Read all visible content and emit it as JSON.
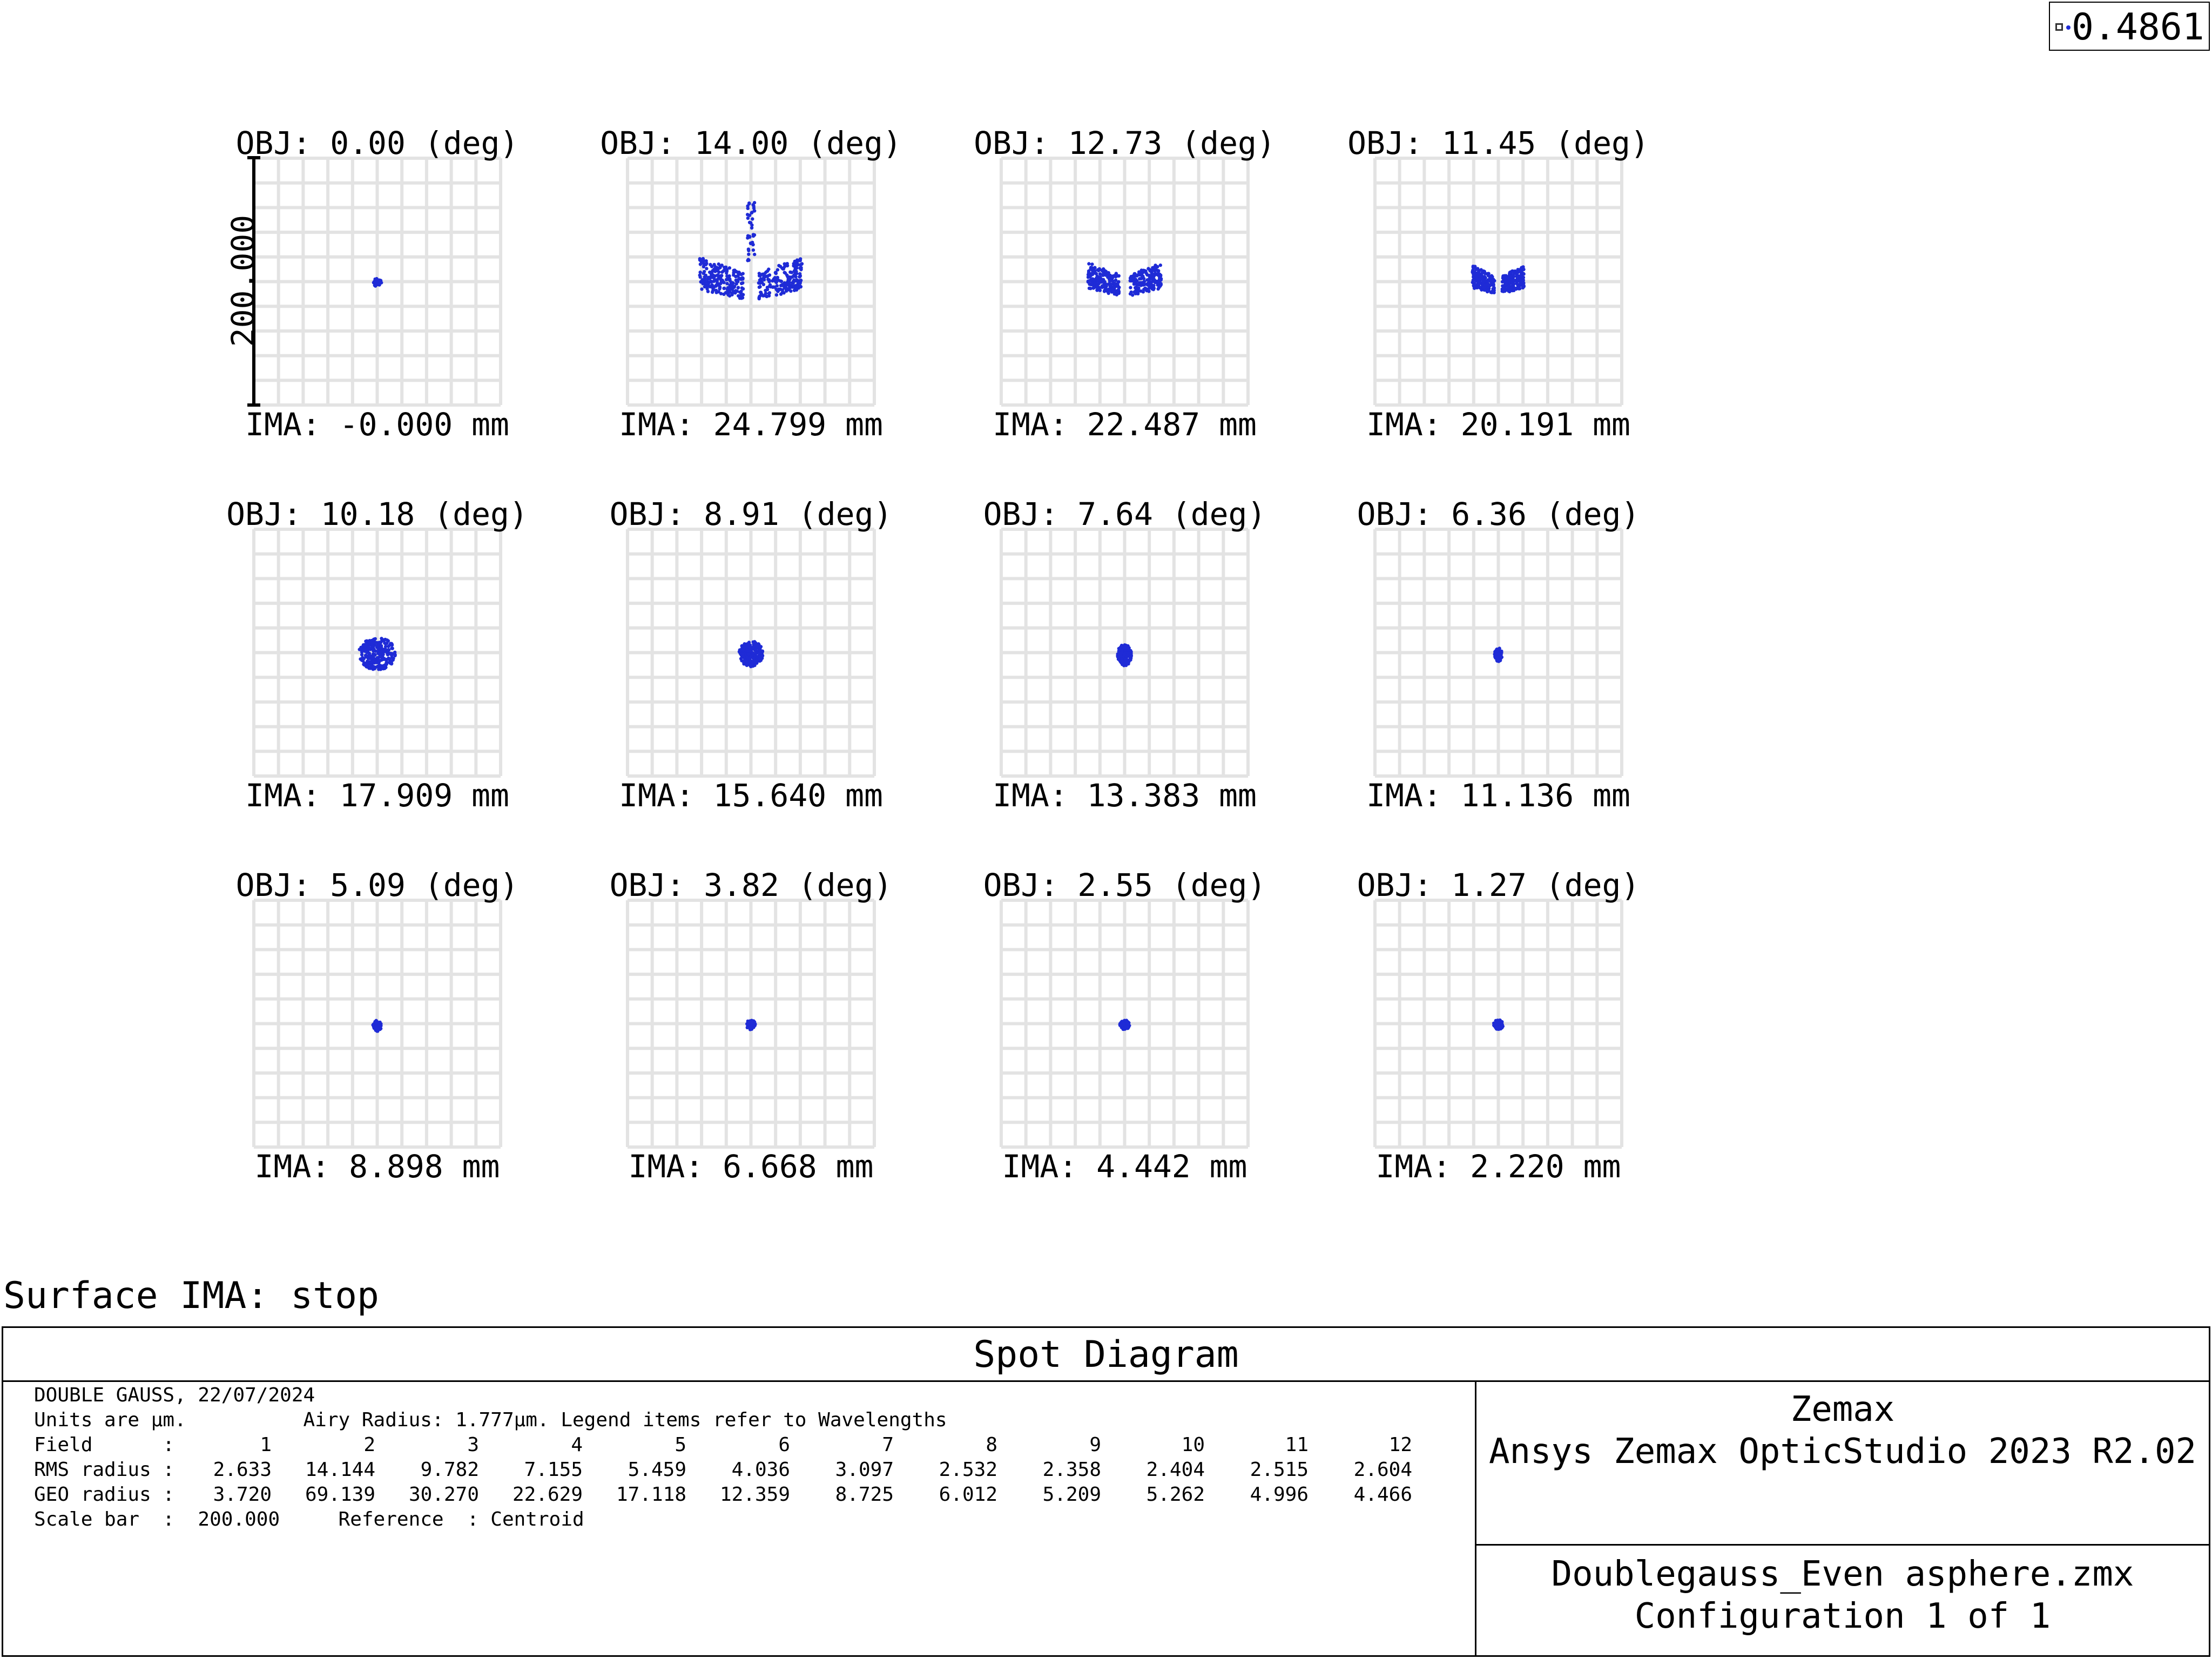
{
  "legend": {
    "wavelength_label": "0.4861",
    "color": "#1f2bd6"
  },
  "surface_label": "Surface IMA: stop",
  "title_block": {
    "title": "Spot Diagram",
    "lens_line": "DOUBLE GAUSS, 22/07/2024",
    "units_line": "Units are µm.          Airy Radius: 1.777µm. Legend items refer to Wavelengths",
    "field_label": "Field      :",
    "rms_label": "RMS radius :",
    "geo_label": "GEO radius :",
    "scale_line": "Scale bar  :  200.000     Reference  : Centroid",
    "company": "Zemax",
    "software": "Ansys Zemax OpticStudio 2023 R2.02",
    "filename": "Doublegauss_Even asphere.zmx",
    "config": "Configuration 1 of 1"
  },
  "chart_data": {
    "type": "scatter",
    "title": "Spot Diagram",
    "scale_bar": "200.000",
    "grid": true,
    "point_color": "#1f2bd6",
    "fields": [
      {
        "field": "1",
        "obj": "OBJ: 0.00 (deg)",
        "ima": "IMA: -0.000 mm",
        "rms": "2.633",
        "geo": "3.720"
      },
      {
        "field": "2",
        "obj": "OBJ: 14.00 (deg)",
        "ima": "IMA: 24.799 mm",
        "rms": "14.144",
        "geo": "69.139"
      },
      {
        "field": "3",
        "obj": "OBJ: 12.73 (deg)",
        "ima": "IMA: 22.487 mm",
        "rms": "9.782",
        "geo": "30.270"
      },
      {
        "field": "4",
        "obj": "OBJ: 11.45 (deg)",
        "ima": "IMA: 20.191 mm",
        "rms": "7.155",
        "geo": "22.629"
      },
      {
        "field": "5",
        "obj": "OBJ: 10.18 (deg)",
        "ima": "IMA: 17.909 mm",
        "rms": "5.459",
        "geo": "17.118"
      },
      {
        "field": "6",
        "obj": "OBJ: 8.91 (deg)",
        "ima": "IMA: 15.640 mm",
        "rms": "4.036",
        "geo": "12.359"
      },
      {
        "field": "7",
        "obj": "OBJ: 7.64 (deg)",
        "ima": "IMA: 13.383 mm",
        "rms": "3.097",
        "geo": "8.725"
      },
      {
        "field": "8",
        "obj": "OBJ: 6.36 (deg)",
        "ima": "IMA: 11.136 mm",
        "rms": "2.532",
        "geo": "6.012"
      },
      {
        "field": "9",
        "obj": "OBJ: 5.09 (deg)",
        "ima": "IMA: 8.898 mm",
        "rms": "2.358",
        "geo": "5.209"
      },
      {
        "field": "10",
        "obj": "OBJ: 3.82 (deg)",
        "ima": "IMA: 6.668 mm",
        "rms": "2.404",
        "geo": "5.262"
      },
      {
        "field": "11",
        "obj": "OBJ: 2.55 (deg)",
        "ima": "IMA: 4.442 mm",
        "rms": "2.515",
        "geo": "4.996"
      },
      {
        "field": "12",
        "obj": "OBJ: 1.27 (deg)",
        "ima": "IMA: 2.220 mm",
        "rms": "2.604",
        "geo": "4.466"
      }
    ]
  }
}
